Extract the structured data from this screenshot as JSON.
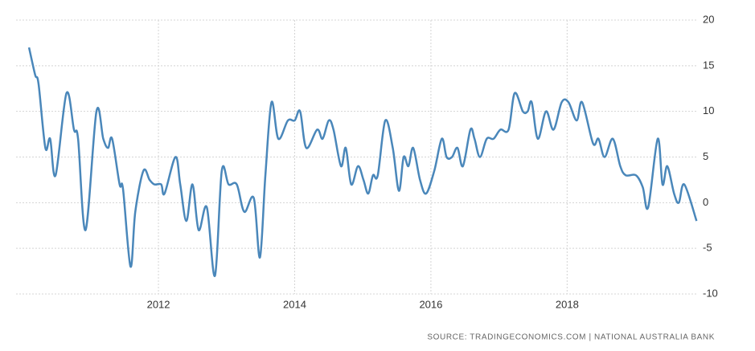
{
  "chart_data": {
    "type": "line",
    "source": "SOURCE: TRADINGECONOMICS.COM | NATIONAL AUSTRALIA BANK",
    "x": [
      2010.1,
      2010.19,
      2010.24,
      2010.34,
      2010.41,
      2010.49,
      2010.65,
      2010.76,
      2010.82,
      2010.93,
      2011.09,
      2011.19,
      2011.26,
      2011.32,
      2011.43,
      2011.48,
      2011.59,
      2011.66,
      2011.78,
      2011.87,
      2011.94,
      2012.04,
      2012.09,
      2012.25,
      2012.32,
      2012.41,
      2012.5,
      2012.59,
      2012.71,
      2012.83,
      2012.93,
      2013.03,
      2013.15,
      2013.26,
      2013.4,
      2013.49,
      2013.57,
      2013.66,
      2013.76,
      2013.9,
      2014.0,
      2014.08,
      2014.17,
      2014.33,
      2014.41,
      2014.5,
      2014.57,
      2014.68,
      2014.75,
      2014.83,
      2014.93,
      2015.01,
      2015.08,
      2015.15,
      2015.22,
      2015.33,
      2015.44,
      2015.53,
      2015.6,
      2015.67,
      2015.74,
      2015.84,
      2015.93,
      2016.05,
      2016.16,
      2016.23,
      2016.31,
      2016.39,
      2016.47,
      2016.58,
      2016.64,
      2016.72,
      2016.82,
      2016.92,
      2017.02,
      2017.14,
      2017.23,
      2017.35,
      2017.42,
      2017.48,
      2017.57,
      2017.69,
      2017.8,
      2017.92,
      2018.02,
      2018.14,
      2018.22,
      2018.38,
      2018.46,
      2018.55,
      2018.67,
      2018.78,
      2018.86,
      2019.01,
      2019.11,
      2019.19,
      2019.33,
      2019.4,
      2019.47,
      2019.57,
      2019.64,
      2019.72,
      2019.9
    ],
    "series": [
      {
        "color": "#4a87ba",
        "values": [
          17,
          14,
          13,
          6,
          7,
          3,
          12,
          8,
          7,
          -3,
          10,
          7,
          6,
          7,
          2,
          1.5,
          -7,
          -1,
          3.5,
          2.5,
          2,
          2,
          1,
          5,
          2,
          -2,
          2,
          -3,
          -0.5,
          -8,
          3.5,
          2,
          2,
          -1,
          0.5,
          -6,
          3,
          11,
          7,
          9,
          9,
          10,
          6,
          8,
          7,
          9,
          8,
          4,
          6,
          2,
          4,
          2.5,
          1,
          3,
          3,
          9,
          6,
          1.3,
          5,
          4,
          6,
          2.5,
          1,
          3.5,
          7,
          5,
          5,
          6,
          4,
          8,
          7,
          5,
          7,
          7,
          8,
          8,
          12,
          10,
          10,
          11,
          7,
          10,
          8,
          11,
          11,
          9,
          11,
          6.5,
          7,
          5,
          7,
          4,
          3,
          3,
          1.7,
          -0.5,
          7,
          2,
          4,
          1,
          0,
          2,
          -2
        ]
      }
    ],
    "xlim": [
      2009.91,
      2019.92
    ],
    "xticks": [
      2012,
      2014,
      2016,
      2018
    ],
    "ylim": [
      -10,
      20
    ],
    "yticks": [
      -10,
      -5,
      0,
      5,
      10,
      15,
      20
    ],
    "grid": true
  }
}
